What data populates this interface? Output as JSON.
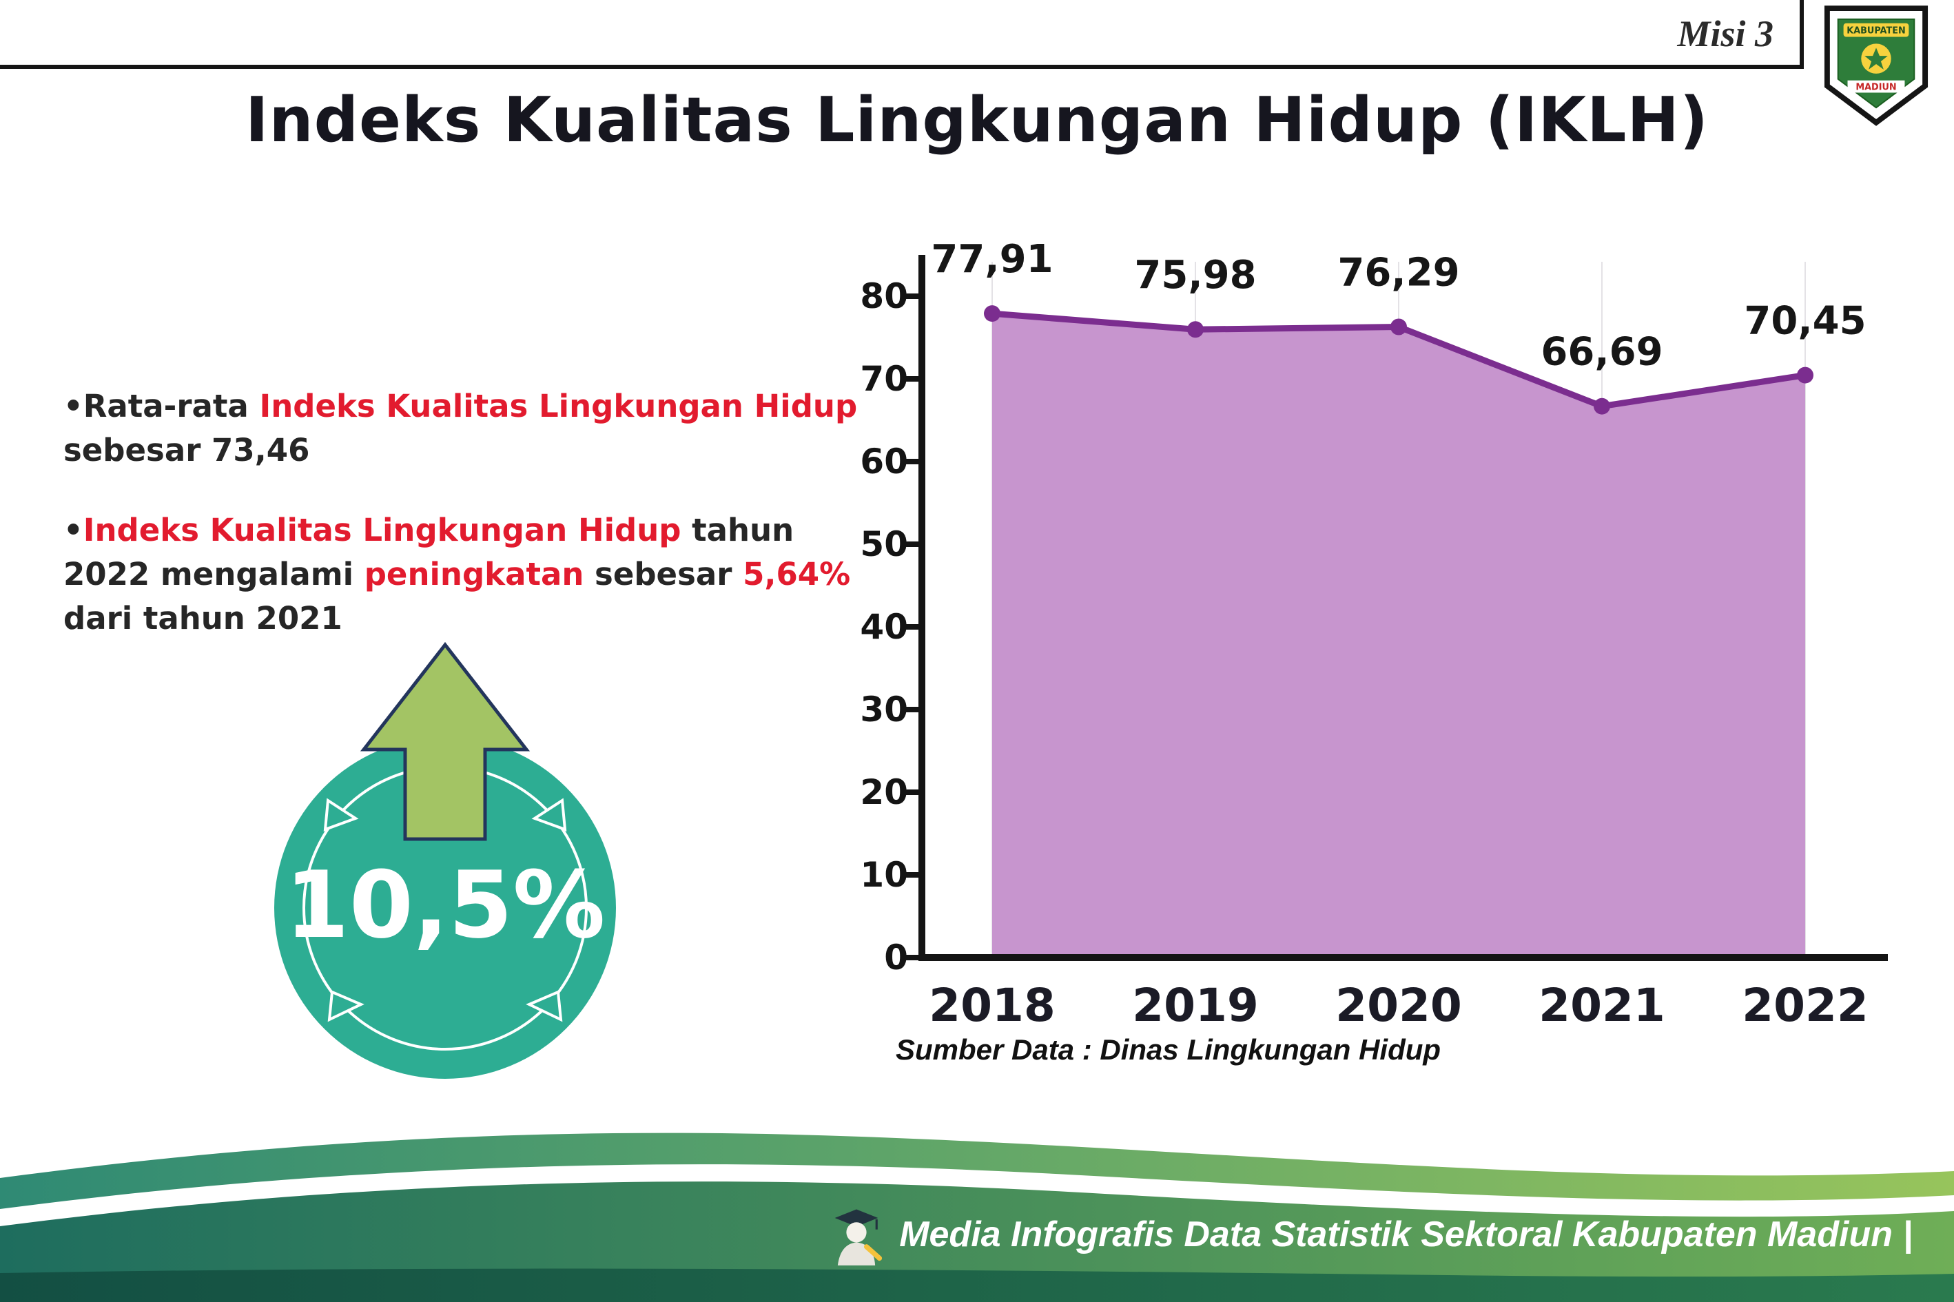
{
  "header": {
    "misi": "Misi 3",
    "title": "Indeks Kualitas Lingkungan Hidup (IKLH)",
    "logo": {
      "top": "KABUPATEN",
      "bottom": "MADIUN"
    }
  },
  "bullets": {
    "marker": "•",
    "b1": {
      "parts": [
        {
          "t": "Rata-rata "
        },
        {
          "t": "Indeks Kualitas Lingkungan Hidup"
        },
        {
          "t": " sebesar 73,46"
        }
      ]
    },
    "b2": {
      "parts": [
        {
          "t": "Indeks Kualitas Lingkungan Hidup"
        },
        {
          "t": " tahun 2022 mengalami "
        },
        {
          "t": "peningkatan"
        },
        {
          "t": " sebesar "
        },
        {
          "t": "5,64%"
        },
        {
          "t": " dari tahun 2021"
        }
      ]
    }
  },
  "badge": {
    "value": "10,5%"
  },
  "chart_data": {
    "type": "area",
    "title": "",
    "categories": [
      "2018",
      "2019",
      "2020",
      "2021",
      "2022"
    ],
    "values": [
      77.91,
      75.98,
      76.29,
      66.69,
      70.45
    ],
    "point_labels": [
      "77,91",
      "75,98",
      "76,29",
      "66,69",
      "70,45"
    ],
    "ylim": [
      0,
      80
    ],
    "ytick_step": 10,
    "yticks": [
      0,
      10,
      20,
      30,
      40,
      50,
      60,
      70,
      80
    ],
    "grid": "vertical-light",
    "legend": "none",
    "line_color": "#7b2d8f",
    "fill_color": "#c795ce",
    "source": "Sumber Data : Dinas Lingkungan Hidup"
  },
  "footer": {
    "credit": "Media Infografis Data Statistik Sektoral Kabupaten Madiun |"
  },
  "colors": {
    "accent_red": "#e21b2e",
    "badge_teal": "#2dad93",
    "arrow_green": "#a3c464",
    "footer_dark": "#1e6d5e",
    "footer_light": "#97c45c"
  }
}
